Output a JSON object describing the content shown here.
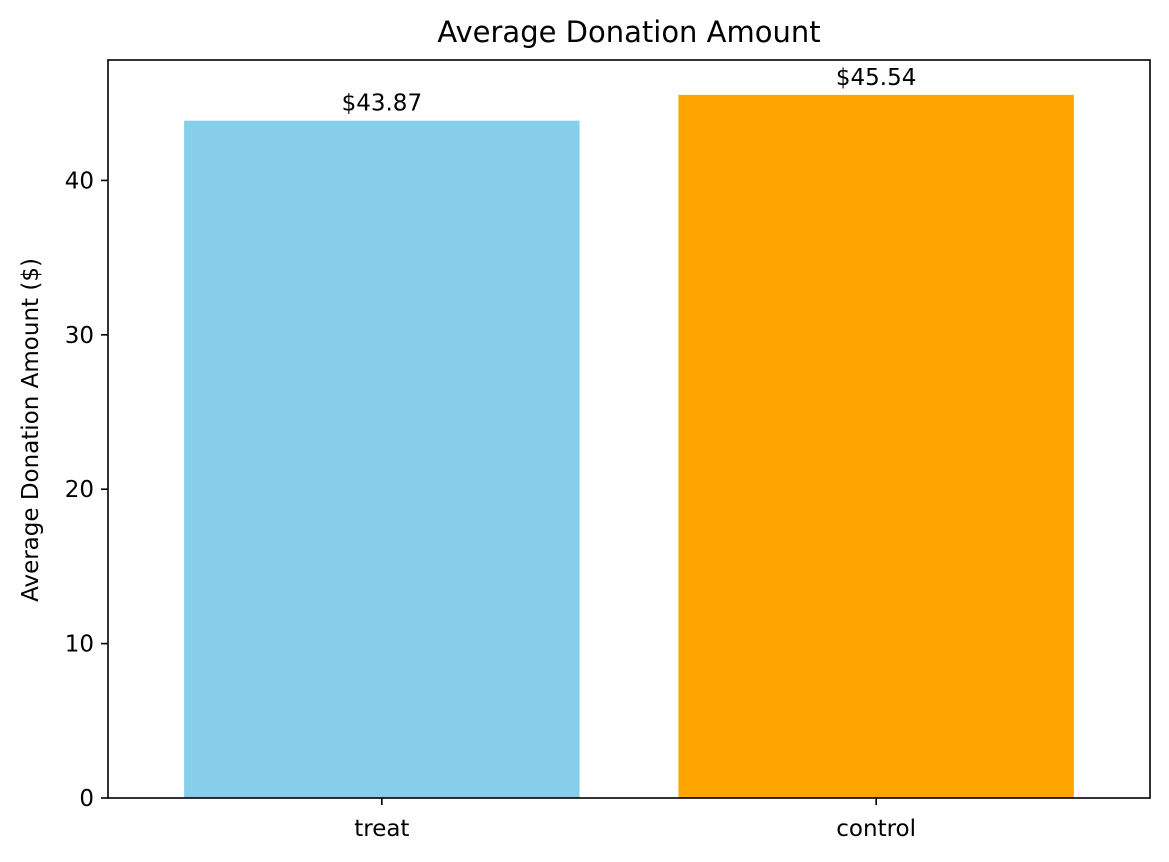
{
  "chart_data": {
    "type": "bar",
    "title": "Average Donation Amount",
    "xlabel": "",
    "ylabel": "Average Donation Amount ($)",
    "categories": [
      "treat",
      "control"
    ],
    "values": [
      43.87,
      45.54
    ],
    "data_labels": [
      "$43.87",
      "$45.54"
    ],
    "colors": [
      "#87ceeb",
      "#ffa500"
    ],
    "ylim": [
      0,
      47.8
    ],
    "yticks": [
      0,
      10,
      20,
      30,
      40
    ],
    "ytick_labels": [
      "0",
      "10",
      "20",
      "30",
      "40"
    ],
    "grid": false,
    "legend": "none"
  }
}
